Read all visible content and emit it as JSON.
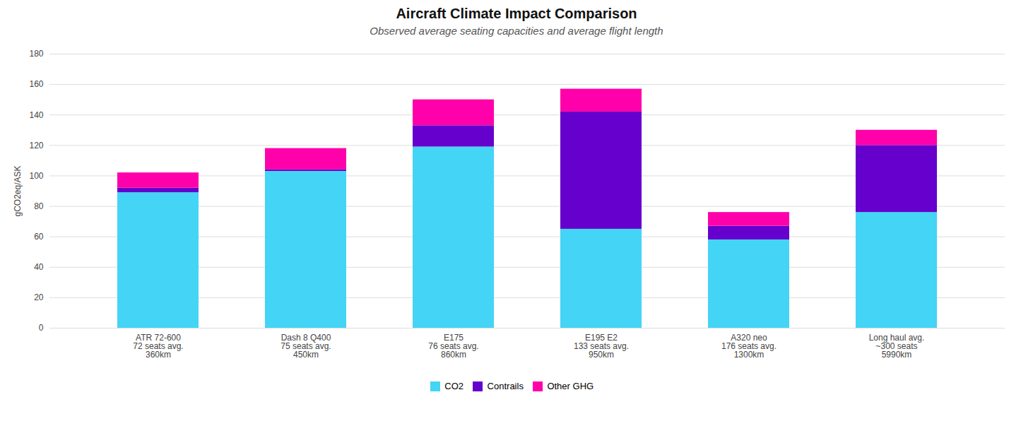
{
  "chart_data": {
    "type": "bar",
    "stacked": true,
    "title": "Aircraft Climate Impact Comparison",
    "subtitle": "Observed average seating capacities and average flight length",
    "ylabel": "gCO2eq/ASK",
    "categories": [
      "ATR 72-600\n72 seats avg.\n360km",
      "Dash 8 Q400\n75 seats avg.\n450km",
      "E175\n76 seats avg.\n860km",
      "E195 E2\n133 seats avg.\n950km",
      "A320 neo\n176 seats avg.\n1300km",
      "Long haul avg.\n~300 seats\n5990km"
    ],
    "series": [
      {
        "name": "CO2",
        "color": "#44d4f5",
        "values": [
          89,
          103,
          119,
          65,
          58,
          76
        ]
      },
      {
        "name": "Contrails",
        "color": "#6600cc",
        "values": [
          3,
          1,
          14,
          77,
          9,
          44
        ]
      },
      {
        "name": "Other GHG",
        "color": "#ff00aa",
        "values": [
          10,
          14,
          17,
          15,
          9,
          10
        ]
      }
    ],
    "ylim": [
      0,
      180
    ],
    "yticks": [
      0,
      20,
      40,
      60,
      80,
      100,
      120,
      140,
      160,
      180
    ],
    "grid": true,
    "legend": "bottom"
  }
}
